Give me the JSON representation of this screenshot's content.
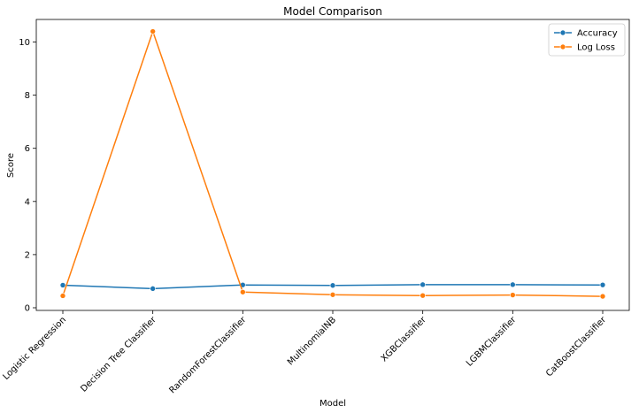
{
  "chart_data": {
    "type": "line",
    "title": "Model Comparison",
    "xlabel": "Model",
    "ylabel": "Score",
    "categories": [
      "Logistic Regression",
      "Decision Tree Classifier",
      "RandomForestClassifier",
      "MultinomialNB",
      "XGBClassifier",
      "LGBMClassifier",
      "CatBoostClassifier"
    ],
    "series": [
      {
        "name": "Accuracy",
        "color": "#1f77b4",
        "values": [
          0.85,
          0.72,
          0.86,
          0.84,
          0.87,
          0.87,
          0.86
        ]
      },
      {
        "name": "Log Loss",
        "color": "#ff7f0e",
        "values": [
          0.45,
          10.4,
          0.59,
          0.49,
          0.46,
          0.48,
          0.43
        ]
      }
    ],
    "ylim": [
      -0.1,
      10.85
    ],
    "yticks": [
      0,
      2,
      4,
      6,
      8,
      10
    ],
    "grid": false,
    "legend_position": "top-right"
  }
}
